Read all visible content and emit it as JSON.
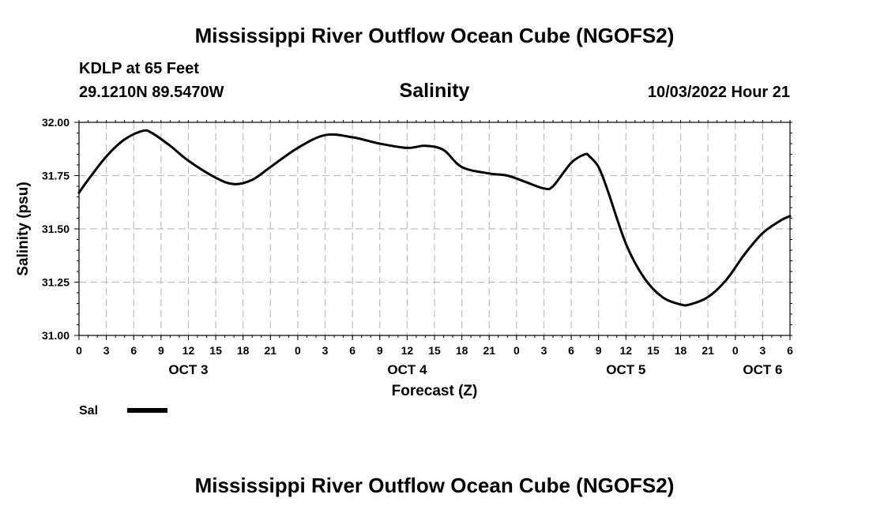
{
  "header": {
    "title_top": "Mississippi River Outflow Ocean Cube (NGOFS2)",
    "title_bottom": "Mississippi River Outflow Ocean Cube (NGOFS2)",
    "station": "KDLP at 65 Feet",
    "coords": "29.1210N  89.5470W",
    "datetime": "10/03/2022 Hour 21"
  },
  "chart_data": {
    "type": "line",
    "title": "Salinity",
    "xlabel": "Forecast (Z)",
    "ylabel": "Salinity (psu)",
    "ylim": [
      31.0,
      32.0
    ],
    "xlim": [
      0,
      78
    ],
    "y_ticks": [
      "32.00",
      "31.75",
      "31.50",
      "31.25",
      "31.00"
    ],
    "x_tick_labels": [
      "0",
      "3",
      "6",
      "9",
      "12",
      "15",
      "18",
      "21",
      "0",
      "3",
      "6",
      "9",
      "12",
      "15",
      "18",
      "21",
      "0",
      "3",
      "6",
      "9",
      "12",
      "15",
      "18",
      "21",
      "0",
      "3",
      "6"
    ],
    "day_labels": [
      {
        "label": "OCT 3",
        "hour": 12
      },
      {
        "label": "OCT 4",
        "hour": 36
      },
      {
        "label": "OCT 5",
        "hour": 60
      },
      {
        "label": "OCT 6",
        "hour": 75
      }
    ],
    "grid": true,
    "legend": [
      {
        "name": "Sal",
        "color": "#000000"
      }
    ],
    "series": [
      {
        "name": "Sal",
        "x": [
          0,
          1,
          3,
          5,
          7,
          8,
          10,
          12,
          15,
          17,
          19,
          21,
          24,
          27,
          30,
          33,
          36,
          38,
          40,
          42,
          45,
          47,
          49,
          51,
          52,
          54,
          55.5,
          56,
          57,
          58,
          60,
          62,
          64,
          66,
          67,
          69,
          71,
          73,
          75,
          77,
          78
        ],
        "values": [
          31.67,
          31.73,
          31.84,
          31.92,
          31.96,
          31.95,
          31.89,
          31.82,
          31.74,
          31.71,
          31.73,
          31.79,
          31.88,
          31.94,
          31.93,
          31.9,
          31.88,
          31.89,
          31.87,
          31.79,
          31.76,
          31.75,
          31.72,
          31.69,
          31.7,
          31.81,
          31.85,
          31.84,
          31.79,
          31.68,
          31.43,
          31.27,
          31.18,
          31.145,
          31.145,
          31.18,
          31.26,
          31.38,
          31.48,
          31.54,
          31.56
        ]
      }
    ]
  }
}
